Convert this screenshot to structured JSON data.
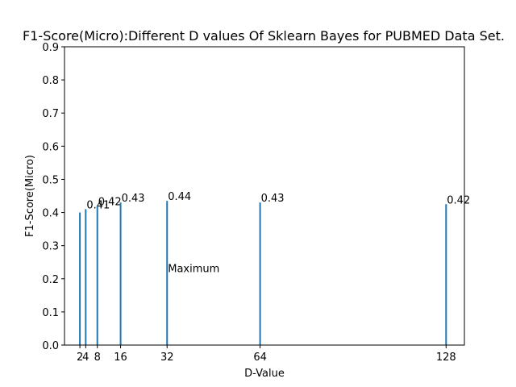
{
  "chart_data": {
    "type": "bar",
    "title": "F1-Score(Micro):Different D values Of Sklearn Bayes for PUBMED Data Set.",
    "xlabel": "D-Value",
    "ylabel": "F1-Score(Micro)",
    "xlim": [
      -3.3,
      134.3
    ],
    "ylim": [
      0,
      0.9
    ],
    "x_ticks": [
      2,
      4,
      8,
      16,
      32,
      64,
      128
    ],
    "x_tick_labels": [
      "2",
      "4",
      "8",
      "16",
      "32",
      "64",
      "128"
    ],
    "y_ticks": [
      0.0,
      0.1,
      0.2,
      0.3,
      0.4,
      0.5,
      0.6,
      0.7,
      0.8,
      0.9
    ],
    "y_tick_labels": [
      "0.0",
      "0.1",
      "0.2",
      "0.3",
      "0.4",
      "0.5",
      "0.6",
      "0.7",
      "0.8",
      "0.9"
    ],
    "grid": false,
    "bar_color": "#1f77b4",
    "bars": [
      {
        "x": 2,
        "value": 0.4,
        "label": ""
      },
      {
        "x": 4,
        "value": 0.41,
        "label": "0.41"
      },
      {
        "x": 8,
        "value": 0.42,
        "label": "0.42"
      },
      {
        "x": 16,
        "value": 0.43,
        "label": "0.43"
      },
      {
        "x": 32,
        "value": 0.435,
        "label": "0.44"
      },
      {
        "x": 64,
        "value": 0.43,
        "label": "0.43"
      },
      {
        "x": 128,
        "value": 0.425,
        "label": "0.42"
      }
    ],
    "annotation": {
      "text": "Maximum",
      "x": 32,
      "y": 0.22
    }
  }
}
